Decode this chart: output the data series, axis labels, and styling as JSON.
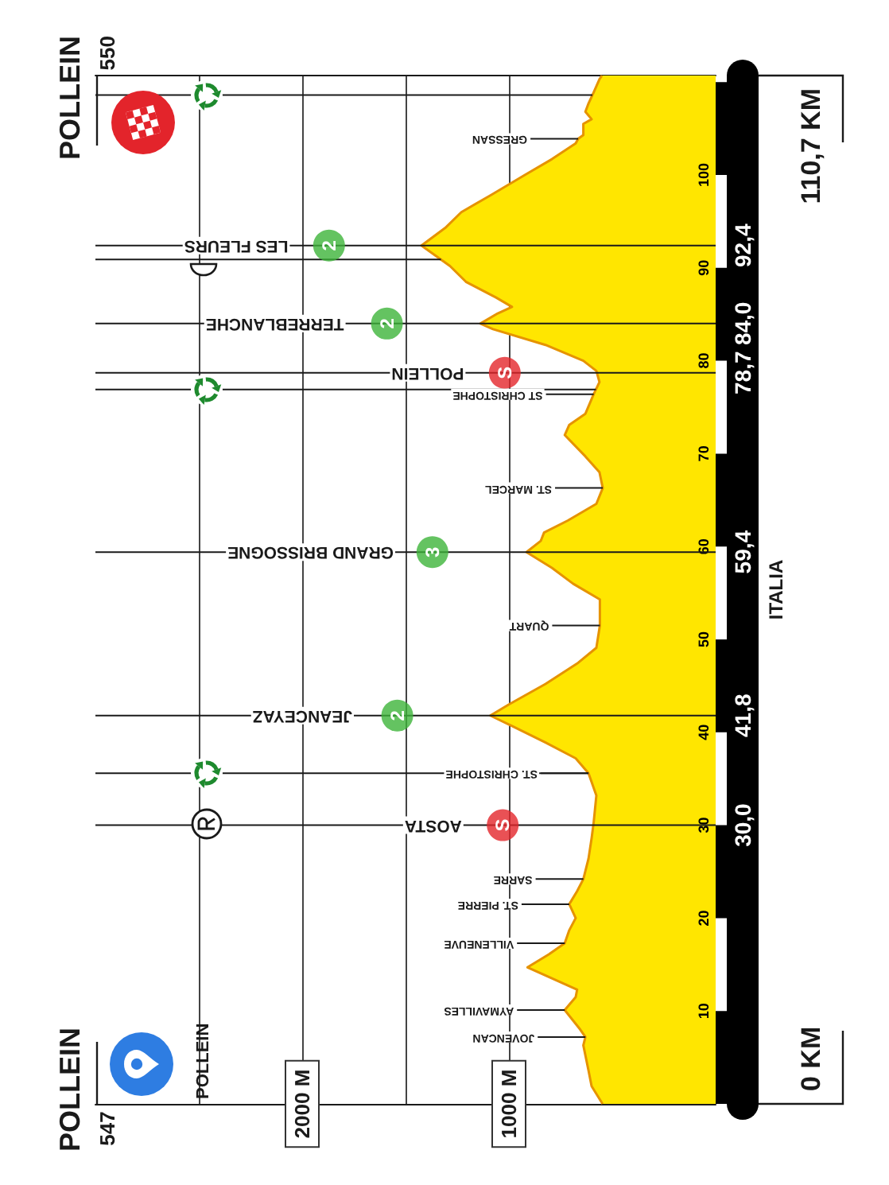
{
  "chart_data": {
    "type": "area",
    "orientation": "horizontal",
    "series": [
      {
        "color": "#ffe600",
        "x": [
          0,
          1.9,
          3.6,
          6.3,
          7.2,
          8,
          10.1,
          11.5,
          12.3,
          14.7,
          16.1,
          17.3,
          18.7,
          20,
          21.5,
          22.9,
          24.2,
          26.4,
          28.6,
          30.3,
          33.2,
          35.6,
          37.2,
          38.9,
          40.6,
          41.8,
          43,
          45.2,
          47.4,
          49.1,
          51.5,
          54.3,
          56,
          57.7,
          59.4,
          60.6,
          61.5,
          62.8,
          64.6,
          66.3,
          68,
          69.7,
          72,
          73.1,
          74.3,
          76.4,
          77.7,
          78.9,
          80,
          81.7,
          83.4,
          84,
          85.1,
          85.8,
          86.8,
          88.5,
          90.2,
          92.4,
          94.3,
          96,
          97.8,
          100,
          101.7,
          103.4,
          103.9,
          104.3,
          105.5,
          106,
          106.8,
          107.7,
          108.9,
          110.3,
          110.7
        ],
        "values": [
          547,
          600,
          615,
          640,
          630,
          655,
          730,
          677,
          670,
          910,
          807,
          730,
          708,
          677,
          708,
          670,
          640,
          615,
          600,
          590,
          577,
          615,
          677,
          823,
          977,
          1090,
          1000,
          823,
          670,
          577,
          560,
          560,
          690,
          792,
          915,
          846,
          830,
          715,
          577,
          546,
          562,
          630,
          730,
          708,
          630,
          590,
          562,
          577,
          640,
          823,
          1077,
          1138,
          1054,
          985,
          1062,
          1208,
          1285,
          1423,
          1308,
          1230,
          1090,
          923,
          792,
          677,
          665,
          640,
          640,
          600,
          630,
          615,
          590,
          562,
          550
        ]
      },
      {
        "type": "scatter",
        "color": "#3db43a",
        "marker": "circle",
        "x": [
          92.4,
          84,
          59.4,
          41.8
        ],
        "values": [
          1870,
          1590,
          1370,
          1540
        ]
      },
      {
        "type": "scatter",
        "color": "#e4262a",
        "marker": "circle",
        "x": [
          78.7,
          30
        ],
        "values": [
          1020,
          1030
        ]
      }
    ],
    "xlim": [
      3000,
      0
    ],
    "xticks": [
      {
        "value": 1000,
        "label": "1000 M"
      },
      {
        "value": 2000,
        "label": "2000 M"
      }
    ],
    "ylim": [
      0,
      110.7
    ],
    "yticks": [
      10,
      20,
      30,
      40,
      50,
      60,
      70,
      80,
      90,
      100
    ],
    "y2lim": [
      0,
      110.7
    ],
    "y2ticks": [
      {
        "value": 30,
        "label": "30,0"
      },
      {
        "value": 41.8,
        "label": "41,8"
      },
      {
        "value": 59.4,
        "label": "59,4"
      },
      {
        "value": 78.7,
        "label": "78,7"
      },
      {
        "value": 84,
        "label": "84,0"
      },
      {
        "value": 92.4,
        "label": "92,4"
      }
    ],
    "grid": "x",
    "ref_lines": [
      {
        "axis": "y",
        "value": 30
      },
      {
        "axis": "y",
        "value": 35.6
      },
      {
        "axis": "y",
        "value": 41.8
      },
      {
        "axis": "y",
        "value": 59.4
      },
      {
        "axis": "y",
        "value": 76.9
      },
      {
        "axis": "y",
        "value": 78.7
      },
      {
        "axis": "y",
        "value": 84
      },
      {
        "axis": "y",
        "value": 90.9
      },
      {
        "axis": "y",
        "value": 92.4
      },
      {
        "axis": "y",
        "value": 108.6
      }
    ],
    "annotations": [
      {
        "text": "GRESSAN",
        "x": 665,
        "y": 103.9
      },
      {
        "text": "LES FLEURS",
        "x": 2060,
        "y": 92.4
      },
      {
        "text": "2",
        "x": 1870,
        "y": 92.4
      },
      {
        "text": "TERREBLANCHE",
        "x": 1790,
        "y": 84
      },
      {
        "text": "2",
        "x": 1590,
        "y": 84
      },
      {
        "text": "POLLEIN",
        "x": 1210,
        "y": 78.7
      },
      {
        "text": "S",
        "x": 1020,
        "y": 78.7
      },
      {
        "text": "ST CHRISTOPHE",
        "x": 590,
        "y": 76.4
      },
      {
        "text": "ST. MARCEL",
        "x": 546,
        "y": 66.3
      },
      {
        "text": "GRAND BRISSOGNE",
        "x": 1550,
        "y": 59.4
      },
      {
        "text": "3",
        "x": 1370,
        "y": 59.4
      },
      {
        "text": "QUART",
        "x": 560,
        "y": 51.5
      },
      {
        "text": "JEANCEYAZ",
        "x": 1750,
        "y": 41.8
      },
      {
        "text": "2",
        "x": 1540,
        "y": 41.8
      },
      {
        "text": "ST. CHRISTOPHE",
        "x": 615,
        "y": 35.6
      },
      {
        "text": "AOSTA",
        "x": 1220,
        "y": 30
      },
      {
        "text": "S",
        "x": 1030,
        "y": 30
      },
      {
        "text": "SARRE",
        "x": 640,
        "y": 24.2
      },
      {
        "text": "ST. PIERRE",
        "x": 708,
        "y": 21.5
      },
      {
        "text": "VILLENEUVE",
        "x": 730,
        "y": 17.3
      },
      {
        "text": "AYMAVILLES",
        "x": 730,
        "y": 10.1
      },
      {
        "text": "JOVENCAN",
        "x": 630,
        "y": 7.2
      },
      "POLLEIN 547",
      "POLLEIN",
      "0 KM",
      "POLLEIN 550",
      "110,7 KM",
      "ITALIA"
    ]
  }
}
